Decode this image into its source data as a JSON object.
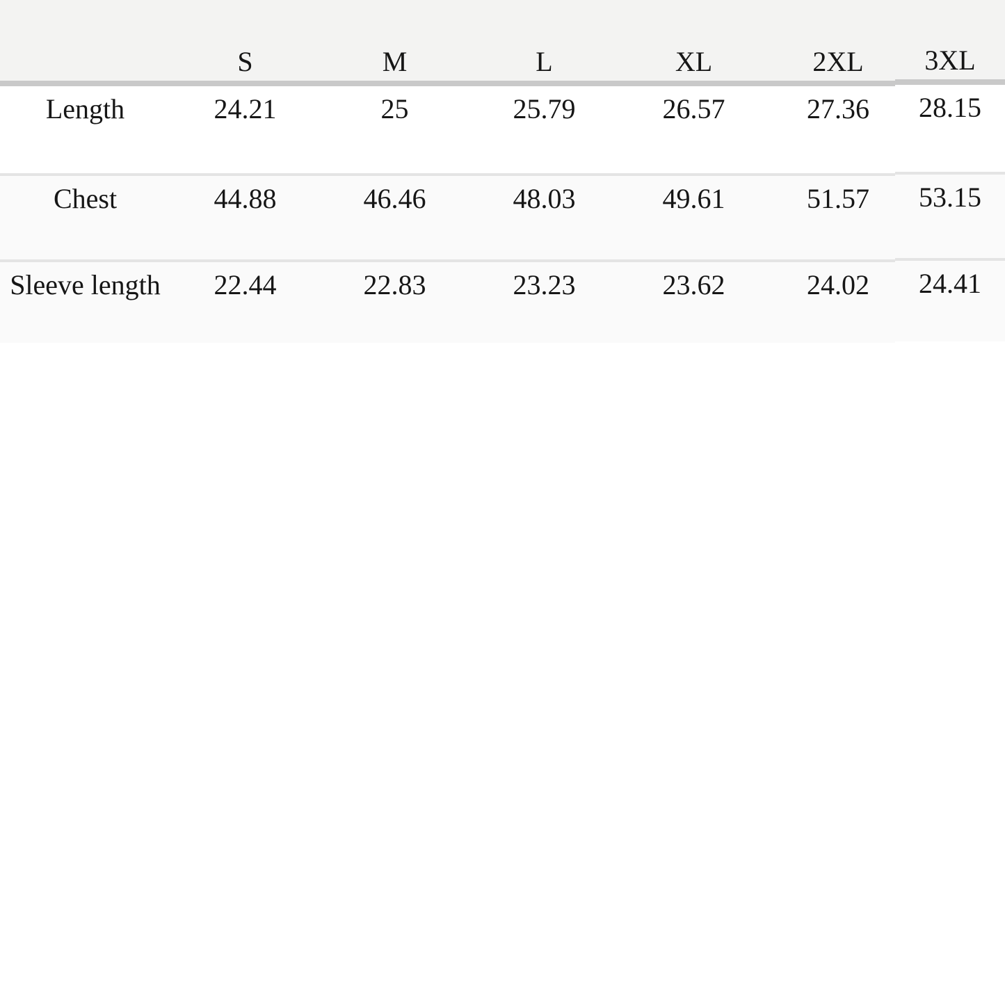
{
  "chart_data": {
    "type": "table",
    "title": "",
    "columns": [
      "S",
      "M",
      "L",
      "XL",
      "2XL",
      "3XL"
    ],
    "corner_label": "",
    "rows": [
      {
        "label": "Length",
        "values": [
          "24.21",
          "25",
          "25.79",
          "26.57",
          "27.36",
          "28.15"
        ]
      },
      {
        "label": "Chest",
        "values": [
          "44.88",
          "46.46",
          "48.03",
          "49.61",
          "51.57",
          "53.15"
        ]
      },
      {
        "label": "Sleeve length",
        "values": [
          "22.44",
          "22.83",
          "23.23",
          "23.62",
          "24.02",
          "24.41"
        ]
      }
    ],
    "layout_hints": {
      "header_background": "#f3f3f2",
      "header_rule_color": "#c9c9c9",
      "row_divider_color": "#e4e4e4",
      "first_row_background": "#ffffff",
      "alternate_row_background": "#fafafa",
      "text_color": "#161616",
      "page_background": "#ffffff",
      "grid": "horizontal-only"
    }
  }
}
